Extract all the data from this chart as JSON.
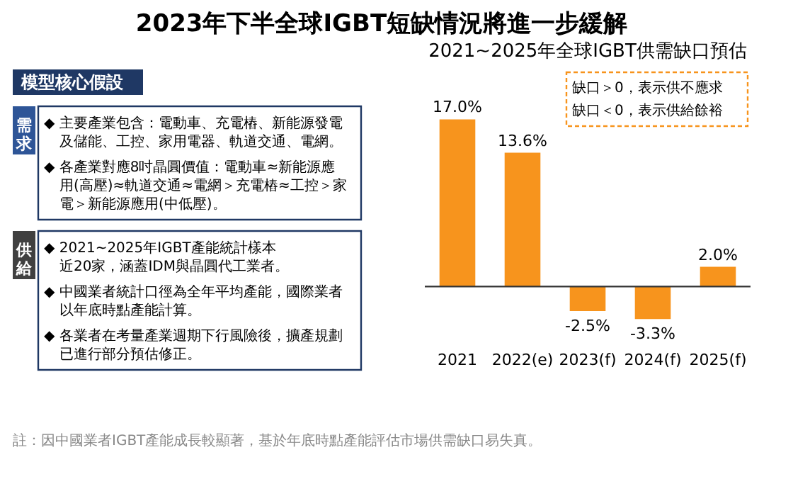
{
  "chart_data": {
    "type": "bar",
    "title": "2023年下半全球IGBT短缺情況將進一步緩解",
    "subtitle": "2021~2025年全球IGBT供需缺口預估",
    "categories": [
      "2021",
      "2022(e)",
      "2023(f)",
      "2024(f)",
      "2025(f)"
    ],
    "series": [
      {
        "color": "#f7941d",
        "values": [
          17.0,
          13.6,
          -2.5,
          -3.3,
          2.0
        ],
        "value_labels": [
          "17.0%",
          "13.6%",
          "-2.5%",
          "-3.3%",
          "2.0%"
        ]
      }
    ],
    "annotations": [
      "模型核心假設",
      "需求",
      "◆ 主要產業包含：電動車、充電樁、新能源發電及儲能、工控、家用電器、軌道交通、電網。",
      "◆ 各產業對應8吋晶圓價值：電動車≈新能源應用(高壓)≈軌道交通≈電網＞充電樁≈工控＞家電＞新能源應用(中低壓)。",
      "供給",
      "◆ 2021~2025年IGBT產能統計樣本近20家，涵蓋IDM與晶圓代工業者。",
      "◆ 中國業者統計口徑為全年平均產能，國際業者以年底時點產能計算。",
      "◆ 各業者在考量產業週期下行風險後，擴產規劃已進行部分預估修正。",
      "缺口＞0，表示供不應求",
      "缺口＜0，表示供給餘裕",
      "註：因中國業者IGBT產能成長較顯著，基於年底時點產能評估市場供需缺口易失真。"
    ]
  }
}
